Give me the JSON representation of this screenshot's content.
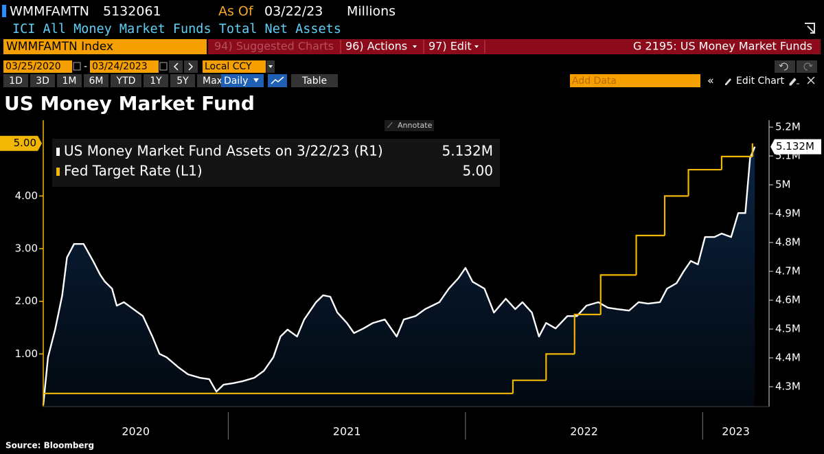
{
  "ui": {
    "ticker": "WMMFAMTN",
    "last": "5132061",
    "as_of_label": "As Of",
    "as_of": "03/22/23",
    "units": "Millions",
    "description": "ICI All Money Market Funds Total Net Assets",
    "security": "WMMFAMTN Index",
    "suggested": "94) Suggested Charts",
    "actions": "96) Actions",
    "edit": "97) Edit",
    "page_title": "G 2195: US Money Market Funds",
    "start_date": "03/25/2020",
    "end_date": "03/24/2023",
    "currency": "Local CCY",
    "periods": [
      "1D",
      "3D",
      "1M",
      "6M",
      "YTD",
      "1Y",
      "5Y",
      "Max"
    ],
    "frequency": "Daily",
    "table": "Table",
    "add_data": "Add Data",
    "edit_chart": "Edit Chart"
  },
  "chart_data": {
    "type": "line",
    "title": "US Money Market Fund",
    "annotate": "Annotate",
    "source": "Source: Bloomberg",
    "xlim": [
      2020.22,
      2023.28
    ],
    "xticks": [
      {
        "value": 2020.61,
        "label": "2020"
      },
      {
        "value": 2021.5,
        "label": "2021"
      },
      {
        "value": 2022.5,
        "label": "2022"
      },
      {
        "value": 2023.14,
        "label": "2023"
      }
    ],
    "year_boundaries": [
      2021,
      2022,
      2023
    ],
    "ylim": [
      0,
      5.44
    ],
    "yticks": [
      {
        "value": 1,
        "label": "1.00"
      },
      {
        "value": 2,
        "label": "2.00"
      },
      {
        "value": 3,
        "label": "3.00"
      },
      {
        "value": 4,
        "label": "4.00"
      }
    ],
    "y2lim": [
      4231000,
      5224000
    ],
    "y2ticks": [
      {
        "value": 4300000,
        "label": "4.3M"
      },
      {
        "value": 4400000,
        "label": "4.4M"
      },
      {
        "value": 4500000,
        "label": "4.5M"
      },
      {
        "value": 4600000,
        "label": "4.6M"
      },
      {
        "value": 4700000,
        "label": "4.7M"
      },
      {
        "value": 4800000,
        "label": "4.8M"
      },
      {
        "value": 4900000,
        "label": "4.9M"
      },
      {
        "value": 5000000,
        "label": "5M"
      },
      {
        "value": 5100000,
        "label": "5.1M"
      },
      {
        "value": 5200000,
        "label": "5.2M"
      }
    ],
    "series": [
      {
        "name": "US Money Market Fund Assets on 3/22/23 (R1)",
        "color": "#ffffff",
        "area_color": "#0c2442",
        "axis": "y2",
        "x": [
          2020.22,
          2020.24,
          2020.27,
          2020.3,
          2020.32,
          2020.35,
          2020.39,
          2020.43,
          2020.46,
          2020.48,
          2020.51,
          2020.53,
          2020.56,
          2020.6,
          2020.64,
          2020.68,
          2020.71,
          2020.74,
          2020.79,
          2020.83,
          2020.88,
          2020.92,
          2020.95,
          2020.98,
          2021.02,
          2021.06,
          2021.11,
          2021.15,
          2021.19,
          2021.22,
          2021.25,
          2021.29,
          2021.32,
          2021.37,
          2021.4,
          2021.43,
          2021.46,
          2021.5,
          2021.53,
          2021.57,
          2021.61,
          2021.66,
          2021.71,
          2021.74,
          2021.79,
          2021.83,
          2021.89,
          2021.93,
          2021.97,
          2022.0,
          2022.03,
          2022.08,
          2022.12,
          2022.17,
          2022.21,
          2022.24,
          2022.28,
          2022.31,
          2022.34,
          2022.38,
          2022.43,
          2022.47,
          2022.51,
          2022.56,
          2022.6,
          2022.64,
          2022.69,
          2022.73,
          2022.77,
          2022.82,
          2022.85,
          2022.89,
          2022.92,
          2022.95,
          2022.98,
          2023.01,
          2023.05,
          2023.08,
          2023.12,
          2023.15,
          2023.18,
          2023.2,
          2023.22
        ],
        "values": [
          4236000,
          4402000,
          4498000,
          4617000,
          4748000,
          4795000,
          4795000,
          4736000,
          4688000,
          4664000,
          4640000,
          4581000,
          4593000,
          4569000,
          4545000,
          4474000,
          4414000,
          4402000,
          4367000,
          4343000,
          4331000,
          4326000,
          4283000,
          4307000,
          4312000,
          4319000,
          4331000,
          4355000,
          4402000,
          4474000,
          4498000,
          4474000,
          4533000,
          4593000,
          4617000,
          4612000,
          4557000,
          4521000,
          4486000,
          4502000,
          4521000,
          4533000,
          4474000,
          4533000,
          4545000,
          4569000,
          4593000,
          4640000,
          4676000,
          4712000,
          4664000,
          4640000,
          4557000,
          4605000,
          4569000,
          4593000,
          4557000,
          4474000,
          4521000,
          4502000,
          4545000,
          4545000,
          4581000,
          4593000,
          4574000,
          4569000,
          4564000,
          4593000,
          4588000,
          4593000,
          4640000,
          4659000,
          4700000,
          4736000,
          4724000,
          4819000,
          4819000,
          4831000,
          4819000,
          4902000,
          4902000,
          5093000,
          5132061
        ],
        "value_labels": [
          null,
          null,
          null,
          null,
          null,
          null,
          null,
          null,
          null,
          null,
          null,
          null,
          null,
          null,
          null,
          null,
          null,
          null,
          null,
          null,
          null,
          null,
          null,
          null,
          null,
          null,
          null,
          null,
          null,
          null,
          null,
          null,
          null,
          null,
          null,
          null,
          null,
          null,
          null,
          null,
          null,
          null,
          null,
          null,
          null,
          null,
          null,
          null,
          null,
          null,
          null,
          null,
          null,
          null,
          null,
          null,
          null,
          null,
          null,
          null,
          null,
          null,
          null,
          null,
          null,
          null,
          null,
          null,
          null,
          null,
          null,
          null,
          null,
          null,
          null,
          null,
          null,
          null,
          null,
          null,
          null,
          null,
          "5.132M"
        ]
      },
      {
        "name": "Fed Target Rate (L1)",
        "color": "#f2b705",
        "axis": "y",
        "step": true,
        "x": [
          2020.22,
          2022.2,
          2022.34,
          2022.46,
          2022.57,
          2022.72,
          2022.84,
          2022.94,
          2023.08,
          2023.21
        ],
        "values": [
          0.25,
          0.5,
          1,
          1.75,
          2.5,
          3.25,
          4,
          4.5,
          4.75,
          5
        ],
        "value_labels": [
          null,
          null,
          null,
          null,
          null,
          null,
          null,
          null,
          null,
          "5.00"
        ]
      }
    ]
  }
}
